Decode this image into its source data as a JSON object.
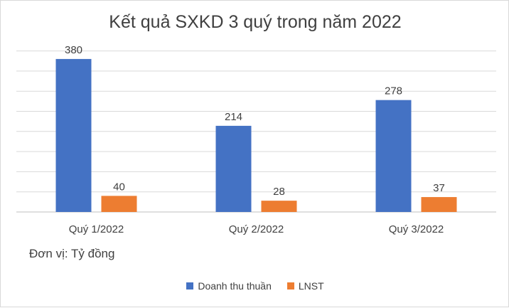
{
  "chart_data": {
    "type": "bar",
    "title": "Kết quả SXKD 3 quý trong năm 2022",
    "categories": [
      "Quý 1/2022",
      "Quý 2/2022",
      "Quý 3/2022"
    ],
    "series": [
      {
        "name": "Doanh thu thuần",
        "color": "#4472c4",
        "values": [
          380,
          214,
          278
        ]
      },
      {
        "name": "LNST",
        "color": "#ed7d31",
        "values": [
          40,
          28,
          37
        ]
      }
    ],
    "ylim": [
      0,
      400
    ],
    "grid": true,
    "legend": "bottom",
    "note": "Đơn vị: Tỷ đồng"
  }
}
